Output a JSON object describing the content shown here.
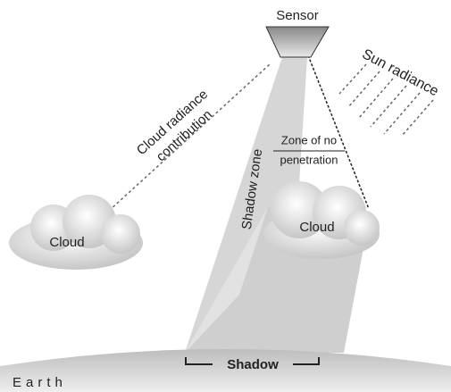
{
  "labels": {
    "sensor": "Sensor",
    "sun_radiance": "Sun radiance",
    "cloud_radiance_contribution": [
      "Cloud radiance",
      "contribution"
    ],
    "shadow_zone": "Shadow zone",
    "zone_of_no_penetration": [
      "Zone of no",
      "penetration"
    ],
    "cloud_left": "Cloud",
    "cloud_right": "Cloud",
    "shadow": "Shadow",
    "earth": "Earth"
  }
}
